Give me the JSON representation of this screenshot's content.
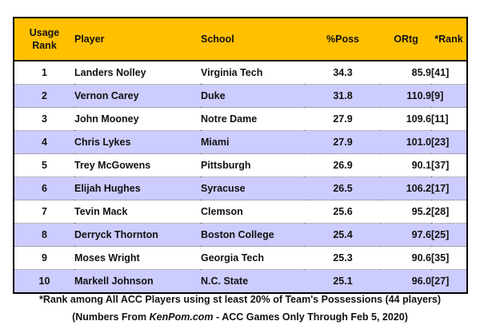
{
  "headers": {
    "usage_rank_line1": "Usage",
    "usage_rank_line2": "Rank",
    "player": "Player",
    "school": "School",
    "poss": "%Poss",
    "ortg": "ORtg",
    "rank": "*Rank"
  },
  "rows": [
    {
      "rank": "1",
      "player": "Landers Nolley",
      "school": "Virginia Tech",
      "poss": "34.3",
      "ortg": "85.9",
      "krank": "[41]"
    },
    {
      "rank": "2",
      "player": "Vernon Carey",
      "school": "Duke",
      "poss": "31.8",
      "ortg": "110.9",
      "krank": "[9]"
    },
    {
      "rank": "3",
      "player": "John Mooney",
      "school": "Notre Dame",
      "poss": "27.9",
      "ortg": "109.6",
      "krank": "[11]"
    },
    {
      "rank": "4",
      "player": "Chris Lykes",
      "school": "Miami",
      "poss": "27.9",
      "ortg": "101.0",
      "krank": "[23]"
    },
    {
      "rank": "5",
      "player": "Trey McGowens",
      "school": "Pittsburgh",
      "poss": "26.9",
      "ortg": "90.1",
      "krank": "[37]"
    },
    {
      "rank": "6",
      "player": "Elijah Hughes",
      "school": "Syracuse",
      "poss": "26.5",
      "ortg": "106.2",
      "krank": "[17]"
    },
    {
      "rank": "7",
      "player": "Tevin Mack",
      "school": "Clemson",
      "poss": "25.6",
      "ortg": "95.2",
      "krank": "[28]"
    },
    {
      "rank": "8",
      "player": "Derryck Thornton",
      "school": "Boston College",
      "poss": "25.4",
      "ortg": "97.6",
      "krank": "[25]"
    },
    {
      "rank": "9",
      "player": "Moses Wright",
      "school": "Georgia Tech",
      "poss": "25.3",
      "ortg": "90.6",
      "krank": "[35]"
    },
    {
      "rank": "10",
      "player": "Markell Johnson",
      "school": "N.C. State",
      "poss": "25.1",
      "ortg": "96.0",
      "krank": "[27]"
    }
  ],
  "footnote": "*Rank among All ACC Players using st least 20% of Team's Possessions (44 players)",
  "source": {
    "prefix": "(Numbers From ",
    "site": "KenPom.com",
    "suffix": " - ACC Games Only Through Feb 5, 2020)"
  },
  "colors": {
    "header_bg": "#ffc000",
    "alt_row_bg": "#ccccff",
    "row_bg": "#ffffff"
  }
}
